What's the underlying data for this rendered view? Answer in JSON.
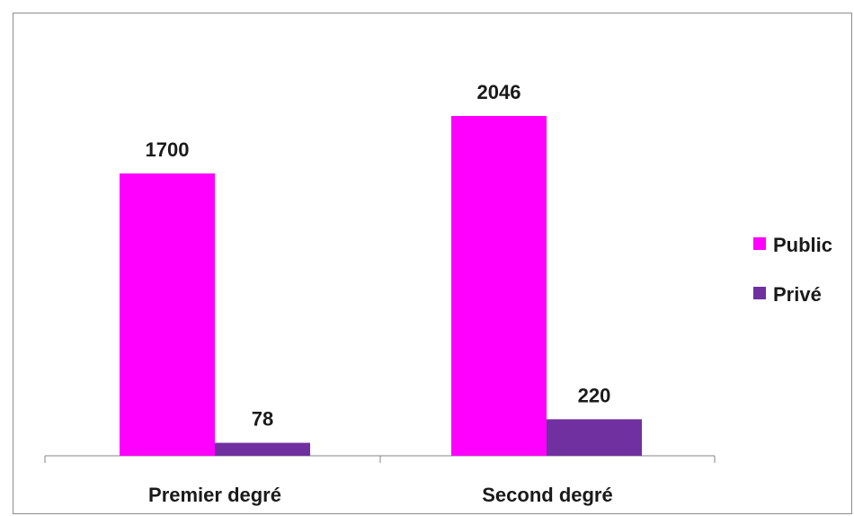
{
  "chart_data": {
    "type": "bar",
    "categories": [
      "Premier degré",
      "Second degré"
    ],
    "series": [
      {
        "name": "Public",
        "values": [
          1700,
          2046
        ],
        "color": "#ff00ff"
      },
      {
        "name": "Privé",
        "values": [
          78,
          220
        ],
        "color": "#7030a0"
      }
    ],
    "value_labels": {
      "public": [
        "1700",
        "2046"
      ],
      "prive": [
        "78",
        "220"
      ]
    },
    "ylim": [
      0,
      2400
    ],
    "grid": false,
    "legend": "right"
  }
}
